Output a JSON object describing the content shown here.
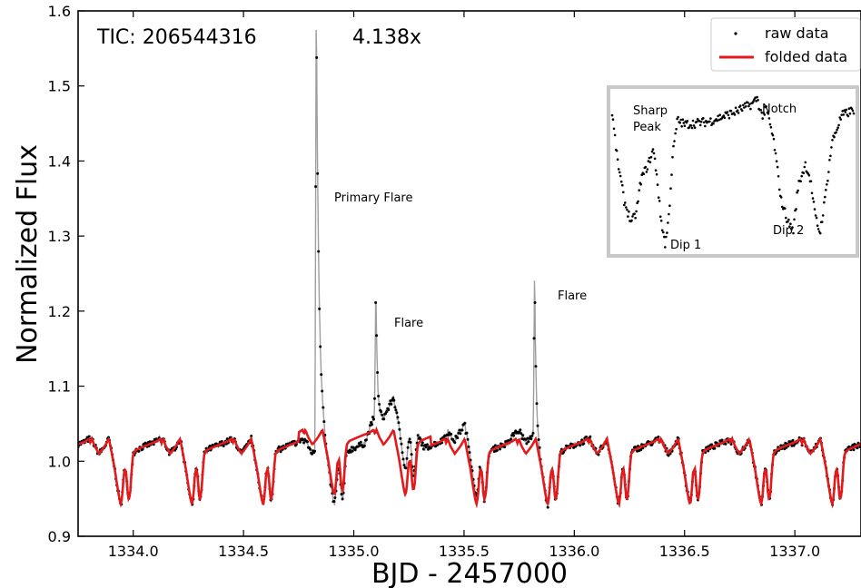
{
  "chart_data": {
    "type": "line",
    "xlabel": "BJD - 2457000",
    "ylabel": "Normalized Flux",
    "xlim": [
      1333.75,
      1337.3
    ],
    "ylim": [
      0.9,
      1.6
    ],
    "xticks": [
      1334.0,
      1334.5,
      1335.0,
      1335.5,
      1336.0,
      1336.5,
      1337.0
    ],
    "xtick_labels": [
      "1334.0",
      "1334.5",
      "1335.0",
      "1335.5",
      "1336.0",
      "1336.5",
      "1337.0"
    ],
    "yticks": [
      0.9,
      1.0,
      1.1,
      1.2,
      1.3,
      1.4,
      1.5,
      1.6
    ],
    "ytick_labels": [
      "0.9",
      "1.0",
      "1.1",
      "1.2",
      "1.3",
      "1.4",
      "1.5",
      "1.6"
    ],
    "period_days": 0.3226,
    "colors": {
      "raw": "#000000",
      "raw_line": "#9e9e9e",
      "folded": "#e31a1c",
      "inset_frame": "#c8c8c8"
    },
    "series": [
      {
        "name": "raw data",
        "style": "points",
        "flares": [
          {
            "t": 1334.83,
            "peak": 1.6,
            "label": "Primary Flare"
          },
          {
            "t": 1335.1,
            "peak": 1.18,
            "label": "Flare"
          },
          {
            "t": 1335.82,
            "peak": 1.22,
            "label": "Flare"
          }
        ]
      },
      {
        "name": "folded data",
        "style": "line"
      }
    ],
    "legend": {
      "position": "top-right",
      "entries": [
        "raw data",
        "folded data"
      ]
    },
    "annotations": {
      "tic": "TIC: 206544316",
      "zoom": "4.138x",
      "primary_flare": "Primary Flare",
      "flare_1": "Flare",
      "flare_2": "Flare"
    },
    "inset": {
      "labels": {
        "sharp": "Sharp",
        "peak": "Peak",
        "notch": "Notch",
        "dip1": "Dip 1",
        "dip2": "Dip 2"
      }
    },
    "grid": false
  }
}
